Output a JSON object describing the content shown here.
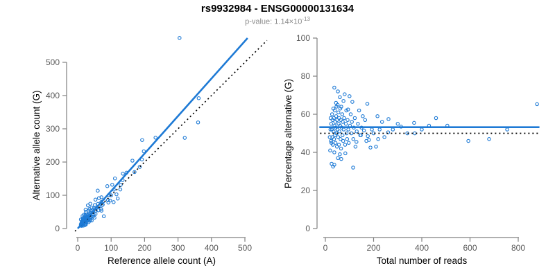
{
  "figure": {
    "title": "rs9932984 - ENSG00000131634",
    "pvalue_prefix": "p-value: 1.14×10",
    "pvalue_exponent": "-13"
  },
  "style": {
    "accent": "#1E7AD5",
    "axis_line_color": "#808080",
    "tick_label_color": "#595959",
    "axis_title_color": "#000000",
    "subtitle_color": "#8A8A8A"
  },
  "chart_data": [
    {
      "type": "scatter",
      "title": "",
      "xlabel": "Reference allele count (A)",
      "ylabel": "Alternative allele count (G)",
      "xticks": [
        0,
        100,
        200,
        300,
        400,
        500
      ],
      "yticks": [
        0,
        100,
        200,
        300,
        400,
        500
      ],
      "xlim": [
        -20,
        570
      ],
      "ylim": [
        -15,
        585
      ],
      "grid": false,
      "marker": "open-circle",
      "lines": [
        {
          "name": "fit-line",
          "x1": 0,
          "y1": 0,
          "x2": 508,
          "y2": 573,
          "style": "solid",
          "color": "accent",
          "slope": 1.128
        },
        {
          "name": "identity-line",
          "x1": -8,
          "y1": -8,
          "x2": 566,
          "y2": 566,
          "style": "dashed",
          "color": "#000000",
          "slope": 1
        }
      ],
      "points_source": "derived from chart 2 points: x = total*(100-pct)/100 , y = total*pct/100"
    },
    {
      "type": "scatter",
      "title": "",
      "xlabel": "Total number of reads",
      "ylabel": "Percentage alternative (G)",
      "xticks": [
        0,
        200,
        400,
        600,
        800
      ],
      "yticks": [
        0,
        20,
        40,
        60,
        80,
        100
      ],
      "xlim": [
        -30,
        900
      ],
      "ylim": [
        0,
        100
      ],
      "grid": false,
      "marker": "open-circle",
      "lines": [
        {
          "name": "mean-line",
          "x1": -25,
          "y1": 53.2,
          "x2": 888,
          "y2": 53.2,
          "style": "solid",
          "color": "accent"
        },
        {
          "name": "expected-50pct-line",
          "x1": -22,
          "y1": 50,
          "x2": 882,
          "y2": 50,
          "style": "dashed",
          "color": "#000000"
        }
      ],
      "points": [
        [
          18,
          48
        ],
        [
          20,
          41
        ],
        [
          21,
          52
        ],
        [
          22,
          58
        ],
        [
          23,
          46
        ],
        [
          24,
          55
        ],
        [
          25,
          45
        ],
        [
          26,
          34
        ],
        [
          27,
          52
        ],
        [
          28,
          60
        ],
        [
          29,
          48
        ],
        [
          30,
          57
        ],
        [
          31,
          44
        ],
        [
          32,
          32.5
        ],
        [
          33,
          63
        ],
        [
          34,
          51
        ],
        [
          35,
          58
        ],
        [
          36,
          47
        ],
        [
          37,
          74
        ],
        [
          37,
          40
        ],
        [
          37,
          33.5
        ],
        [
          38,
          54
        ],
        [
          39,
          62
        ],
        [
          40,
          49
        ],
        [
          41,
          56
        ],
        [
          42,
          45
        ],
        [
          43,
          53
        ],
        [
          44,
          66
        ],
        [
          45,
          59
        ],
        [
          46,
          64
        ],
        [
          47,
          50
        ],
        [
          48,
          43
        ],
        [
          49,
          57
        ],
        [
          50,
          52
        ],
        [
          51,
          65
        ],
        [
          52,
          72
        ],
        [
          52,
          37
        ],
        [
          53,
          48
        ],
        [
          54,
          61
        ],
        [
          55,
          55
        ],
        [
          56,
          44
        ],
        [
          57,
          58
        ],
        [
          58,
          51
        ],
        [
          60,
          69
        ],
        [
          60,
          39
        ],
        [
          61,
          54
        ],
        [
          62,
          63
        ],
        [
          63,
          47
        ],
        [
          64,
          57
        ],
        [
          65,
          42
        ],
        [
          66,
          64
        ],
        [
          66,
          36.5
        ],
        [
          68,
          53
        ],
        [
          70,
          60
        ],
        [
          71,
          49
        ],
        [
          72,
          56
        ],
        [
          74,
          46
        ],
        [
          75,
          67
        ],
        [
          76,
          52
        ],
        [
          78,
          58
        ],
        [
          80,
          70.5
        ],
        [
          82,
          44
        ],
        [
          83,
          39.5
        ],
        [
          85,
          55
        ],
        [
          87,
          62
        ],
        [
          88,
          50
        ],
        [
          90,
          47
        ],
        [
          92,
          57
        ],
        [
          94,
          62.5
        ],
        [
          95,
          52
        ],
        [
          97,
          45
        ],
        [
          100,
          69.5
        ],
        [
          102,
          54
        ],
        [
          105,
          60
        ],
        [
          108,
          50
        ],
        [
          110,
          56
        ],
        [
          112,
          66.5
        ],
        [
          115,
          32
        ],
        [
          116,
          47
        ],
        [
          118,
          53
        ],
        [
          122,
          58
        ],
        [
          125,
          43
        ],
        [
          129,
          45.5
        ],
        [
          130,
          51
        ],
        [
          135,
          55
        ],
        [
          140,
          62
        ],
        [
          145,
          49
        ],
        [
          147,
          49
        ],
        [
          150,
          53
        ],
        [
          155,
          59
        ],
        [
          160,
          51.5
        ],
        [
          165,
          57
        ],
        [
          170,
          46
        ],
        [
          174,
          65.5
        ],
        [
          176,
          48.5
        ],
        [
          181,
          46.5
        ],
        [
          187,
          42.5
        ],
        [
          193,
          52
        ],
        [
          200,
          50
        ],
        [
          210,
          43
        ],
        [
          216,
          59
        ],
        [
          219,
          47
        ],
        [
          225,
          52
        ],
        [
          235,
          56
        ],
        [
          245,
          48
        ],
        [
          260,
          50.5
        ],
        [
          262,
          57.5
        ],
        [
          280,
          52
        ],
        [
          300,
          55
        ],
        [
          314,
          53.5
        ],
        [
          340,
          50
        ],
        [
          368,
          55.5
        ],
        [
          371,
          50
        ],
        [
          400,
          52
        ],
        [
          430,
          54
        ],
        [
          459,
          58
        ],
        [
          506,
          54
        ],
        [
          593,
          46
        ],
        [
          679,
          47
        ],
        [
          754,
          52
        ],
        [
          878,
          65.3
        ]
      ]
    }
  ]
}
